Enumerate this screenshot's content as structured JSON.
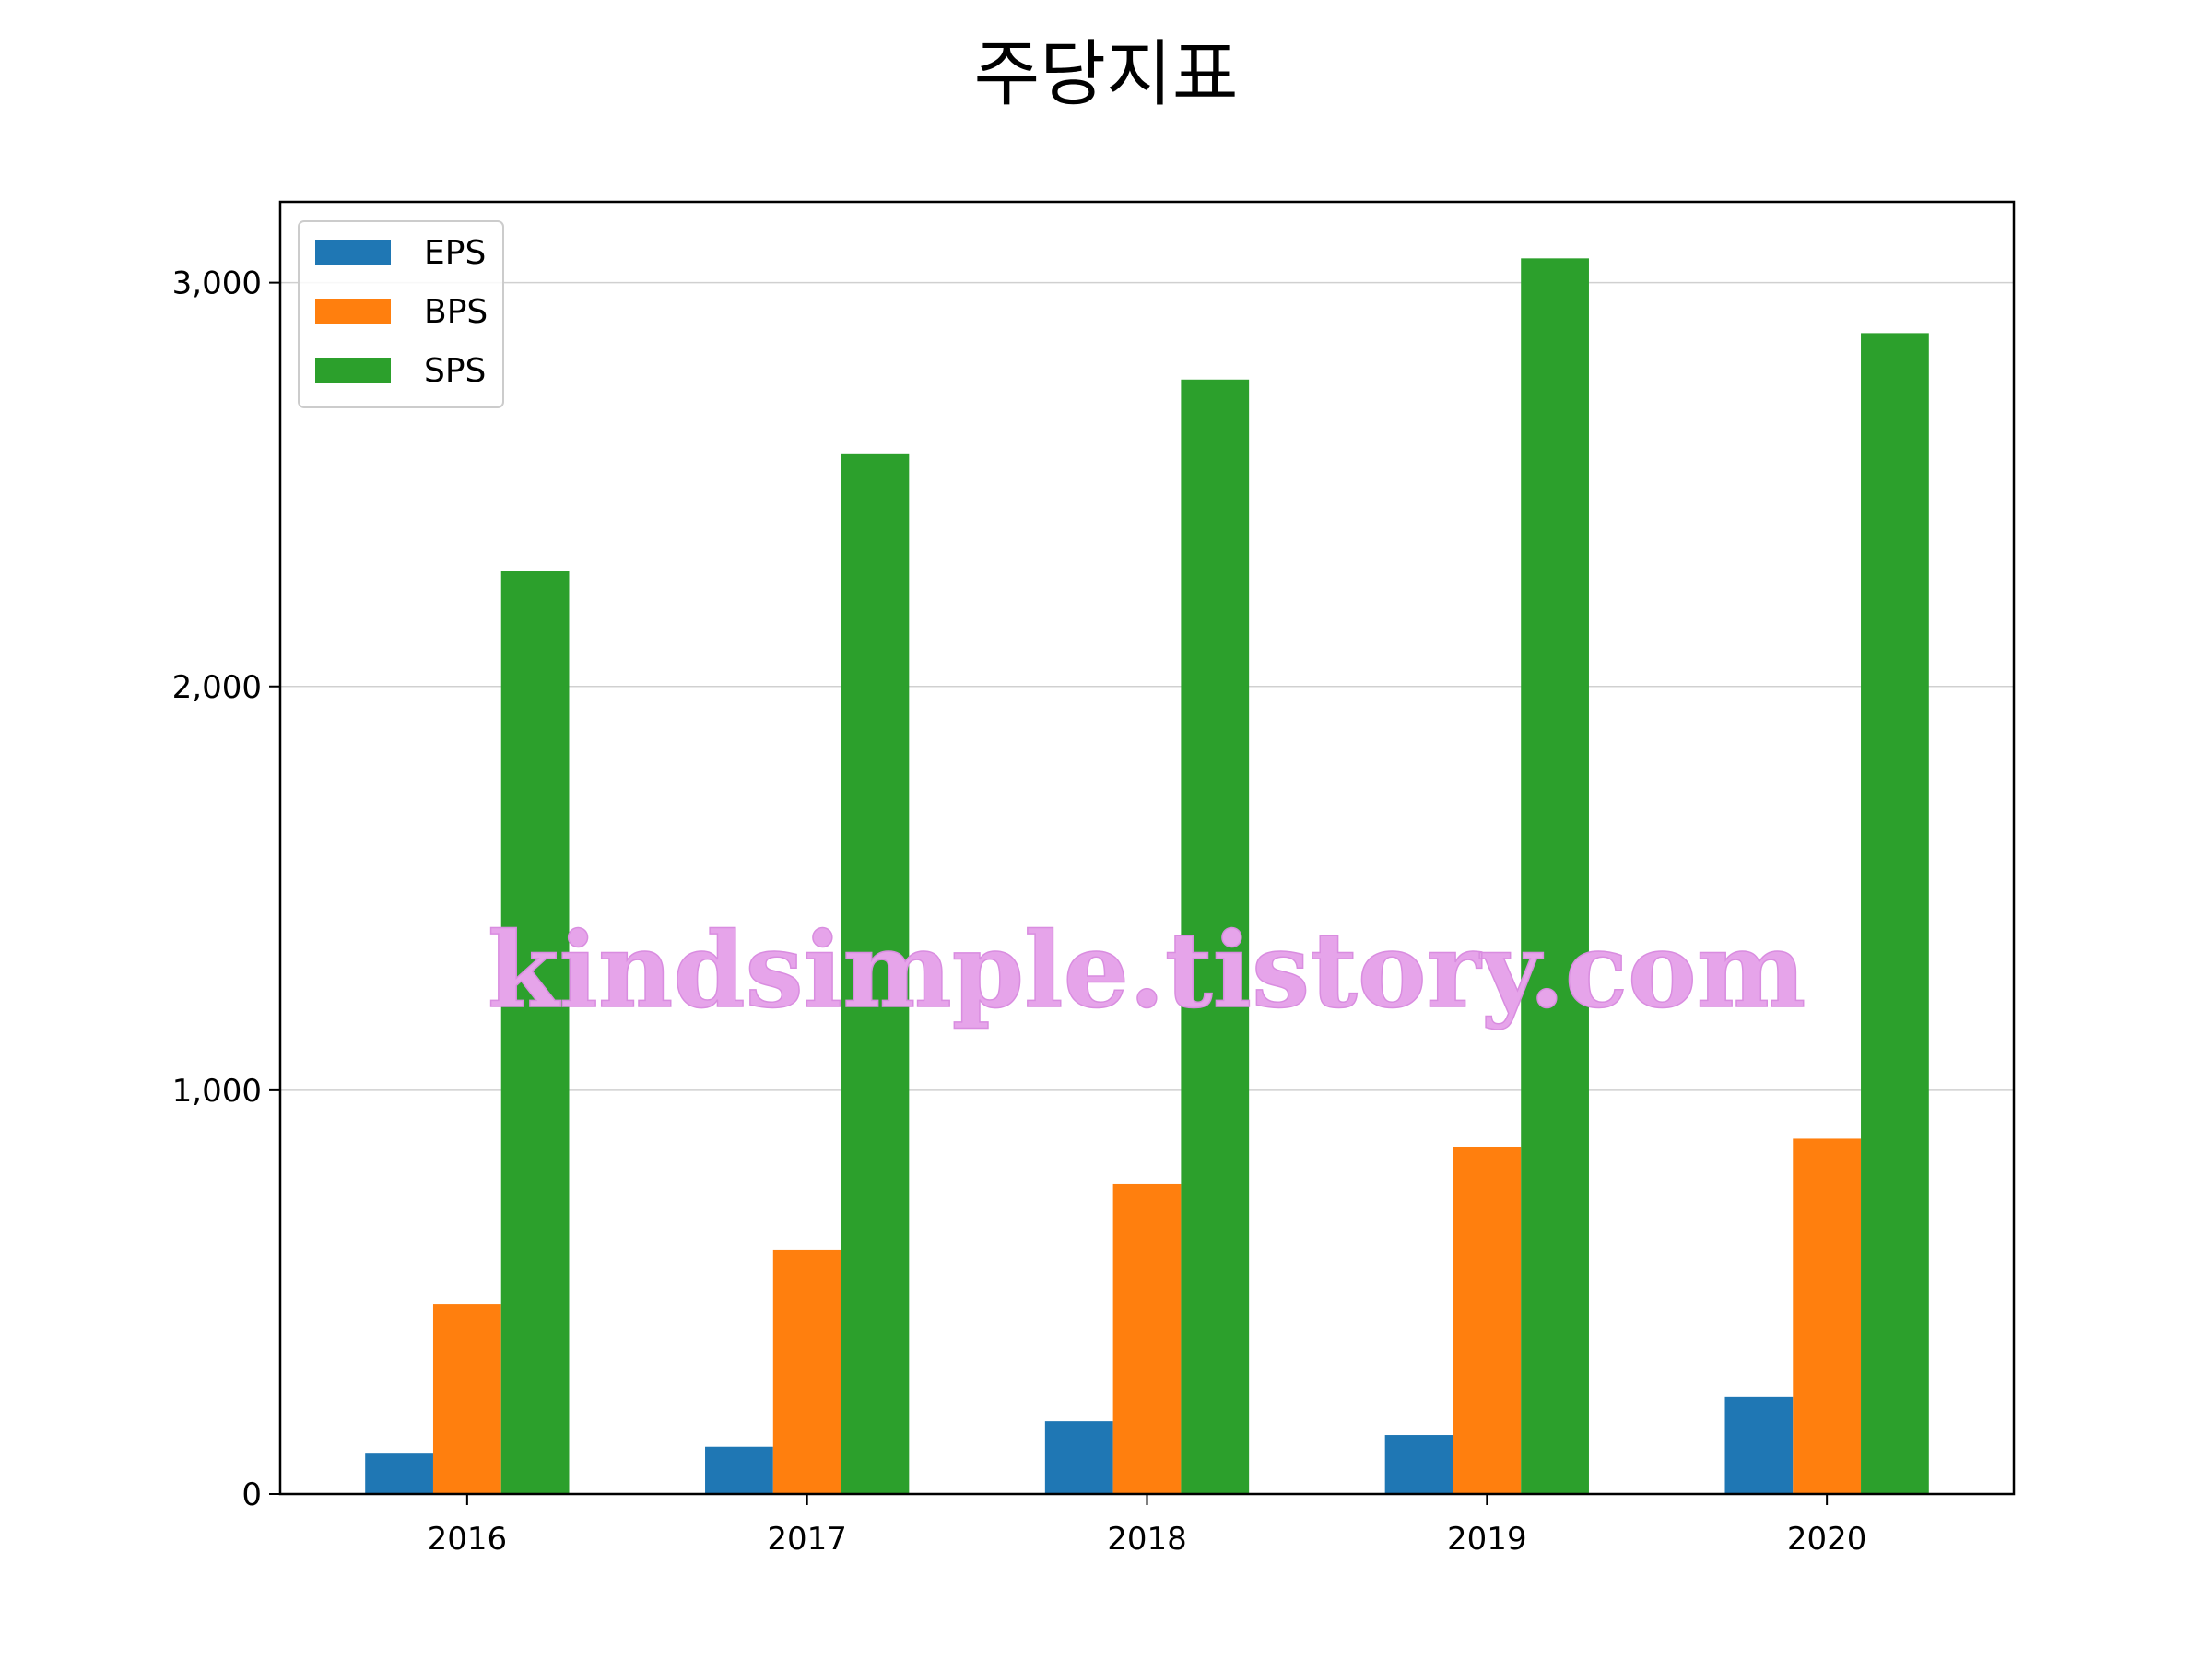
{
  "chart_data": {
    "type": "bar",
    "title": "주당지표",
    "categories": [
      "2016",
      "2017",
      "2018",
      "2019",
      "2020"
    ],
    "series": [
      {
        "name": "EPS",
        "color": "#1f77b4",
        "values": [
          100,
          117,
          180,
          146,
          240
        ]
      },
      {
        "name": "BPS",
        "color": "#ff7f0e",
        "values": [
          470,
          605,
          767,
          860,
          880
        ]
      },
      {
        "name": "SPS",
        "color": "#2ca02c",
        "values": [
          2285,
          2575,
          2760,
          3060,
          2875
        ]
      }
    ],
    "ylim": [
      0,
      3200
    ],
    "yticks": [
      0,
      1000,
      2000,
      3000
    ],
    "ytick_labels": [
      "0",
      "1,000",
      "2,000",
      "3,000"
    ],
    "grid": "horizontal",
    "legend_position": "top-left",
    "xlabel": "",
    "ylabel": ""
  },
  "watermark": "kindsimple.tistory.com"
}
